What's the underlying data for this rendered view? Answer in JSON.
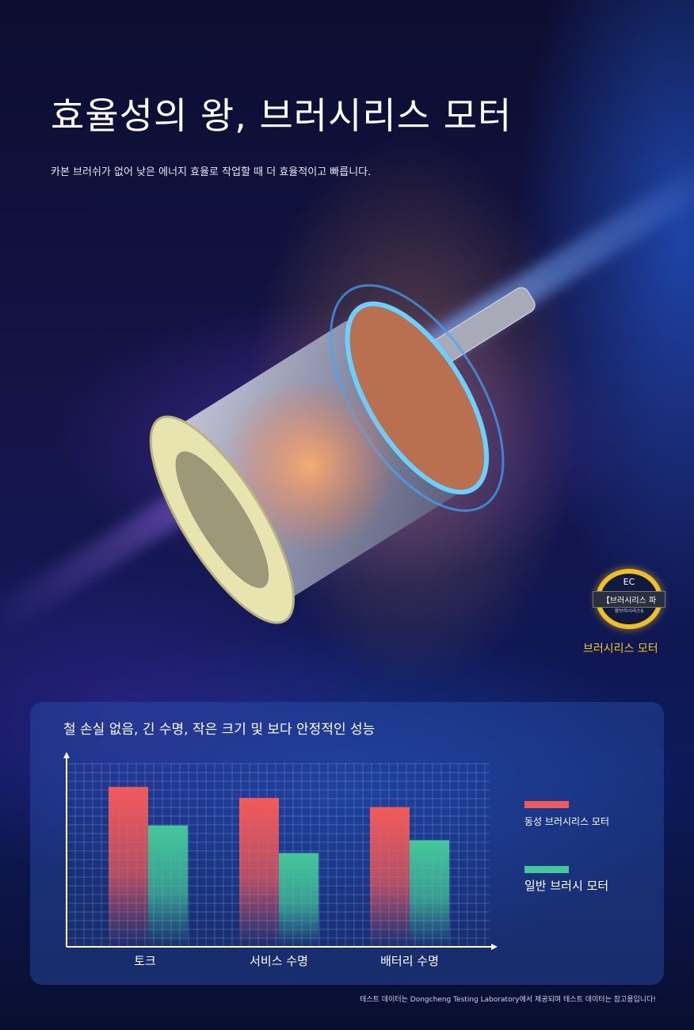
{
  "header": {
    "title": "효율성의 왕, 브러시리스 모터",
    "subtitle": "카본 브러쉬가 없어 낮은 에너지 효율로 작업할 때 더 효율적이고 빠릅니다."
  },
  "badge": {
    "top_text": "EC",
    "band_text": "【브러시리스 파",
    "small_text": "영브러시리스S",
    "label": "브러시리스 모터",
    "color": "#f2c21c"
  },
  "chart_data": {
    "type": "bar",
    "title": "철 손실 없음, 긴 수명, 작은 크기 및 보다 안정적인 성능",
    "categories": [
      "토크",
      "서비스 수명",
      "배터리 수명"
    ],
    "series": [
      {
        "name": "동성 브러시리스 모터",
        "color": "#f25a5a",
        "values": [
          87,
          81,
          76
        ]
      },
      {
        "name": "일반 브러시 모터",
        "color": "#45c79a",
        "values": [
          66,
          51,
          58
        ]
      }
    ],
    "ylim": [
      0,
      100
    ],
    "grid": true,
    "legend": "right"
  },
  "footer": {
    "note": "테스트 데이터는 Dongcheng Testing Laboratory에서 제공되며 테스트 데이터는 참고용입니다!"
  }
}
